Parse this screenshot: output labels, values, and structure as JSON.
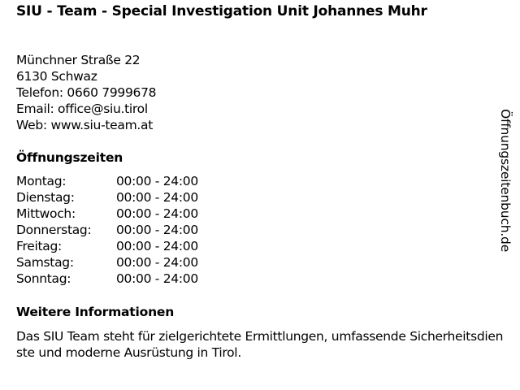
{
  "title": "SIU - Team - Special Investigation Unit Johannes Muhr",
  "address": {
    "street": "Münchner Straße 22",
    "city": "6130 Schwaz",
    "phone": "Telefon: 0660 7999678",
    "email": "Email: office@siu.tirol",
    "web": "Web: www.siu-team.at"
  },
  "hours_heading": "Öffnungszeiten",
  "hours": [
    {
      "day": "Montag:",
      "time": "00:00 - 24:00"
    },
    {
      "day": "Dienstag:",
      "time": "00:00 - 24:00"
    },
    {
      "day": "Mittwoch:",
      "time": "00:00 - 24:00"
    },
    {
      "day": "Donnerstag:",
      "time": "00:00 - 24:00"
    },
    {
      "day": "Freitag:",
      "time": "00:00 - 24:00"
    },
    {
      "day": "Samstag:",
      "time": "00:00 - 24:00"
    },
    {
      "day": "Sonntag:",
      "time": "00:00 - 24:00"
    }
  ],
  "info_heading": "Weitere Informationen",
  "info_text": "Das SIU Team steht für zielgerichtete Ermittlungen, umfassende Sicherheitsdienste und moderne Ausrüstung in Tirol.",
  "side_brand": "Öffnungszeitenbuch.de"
}
